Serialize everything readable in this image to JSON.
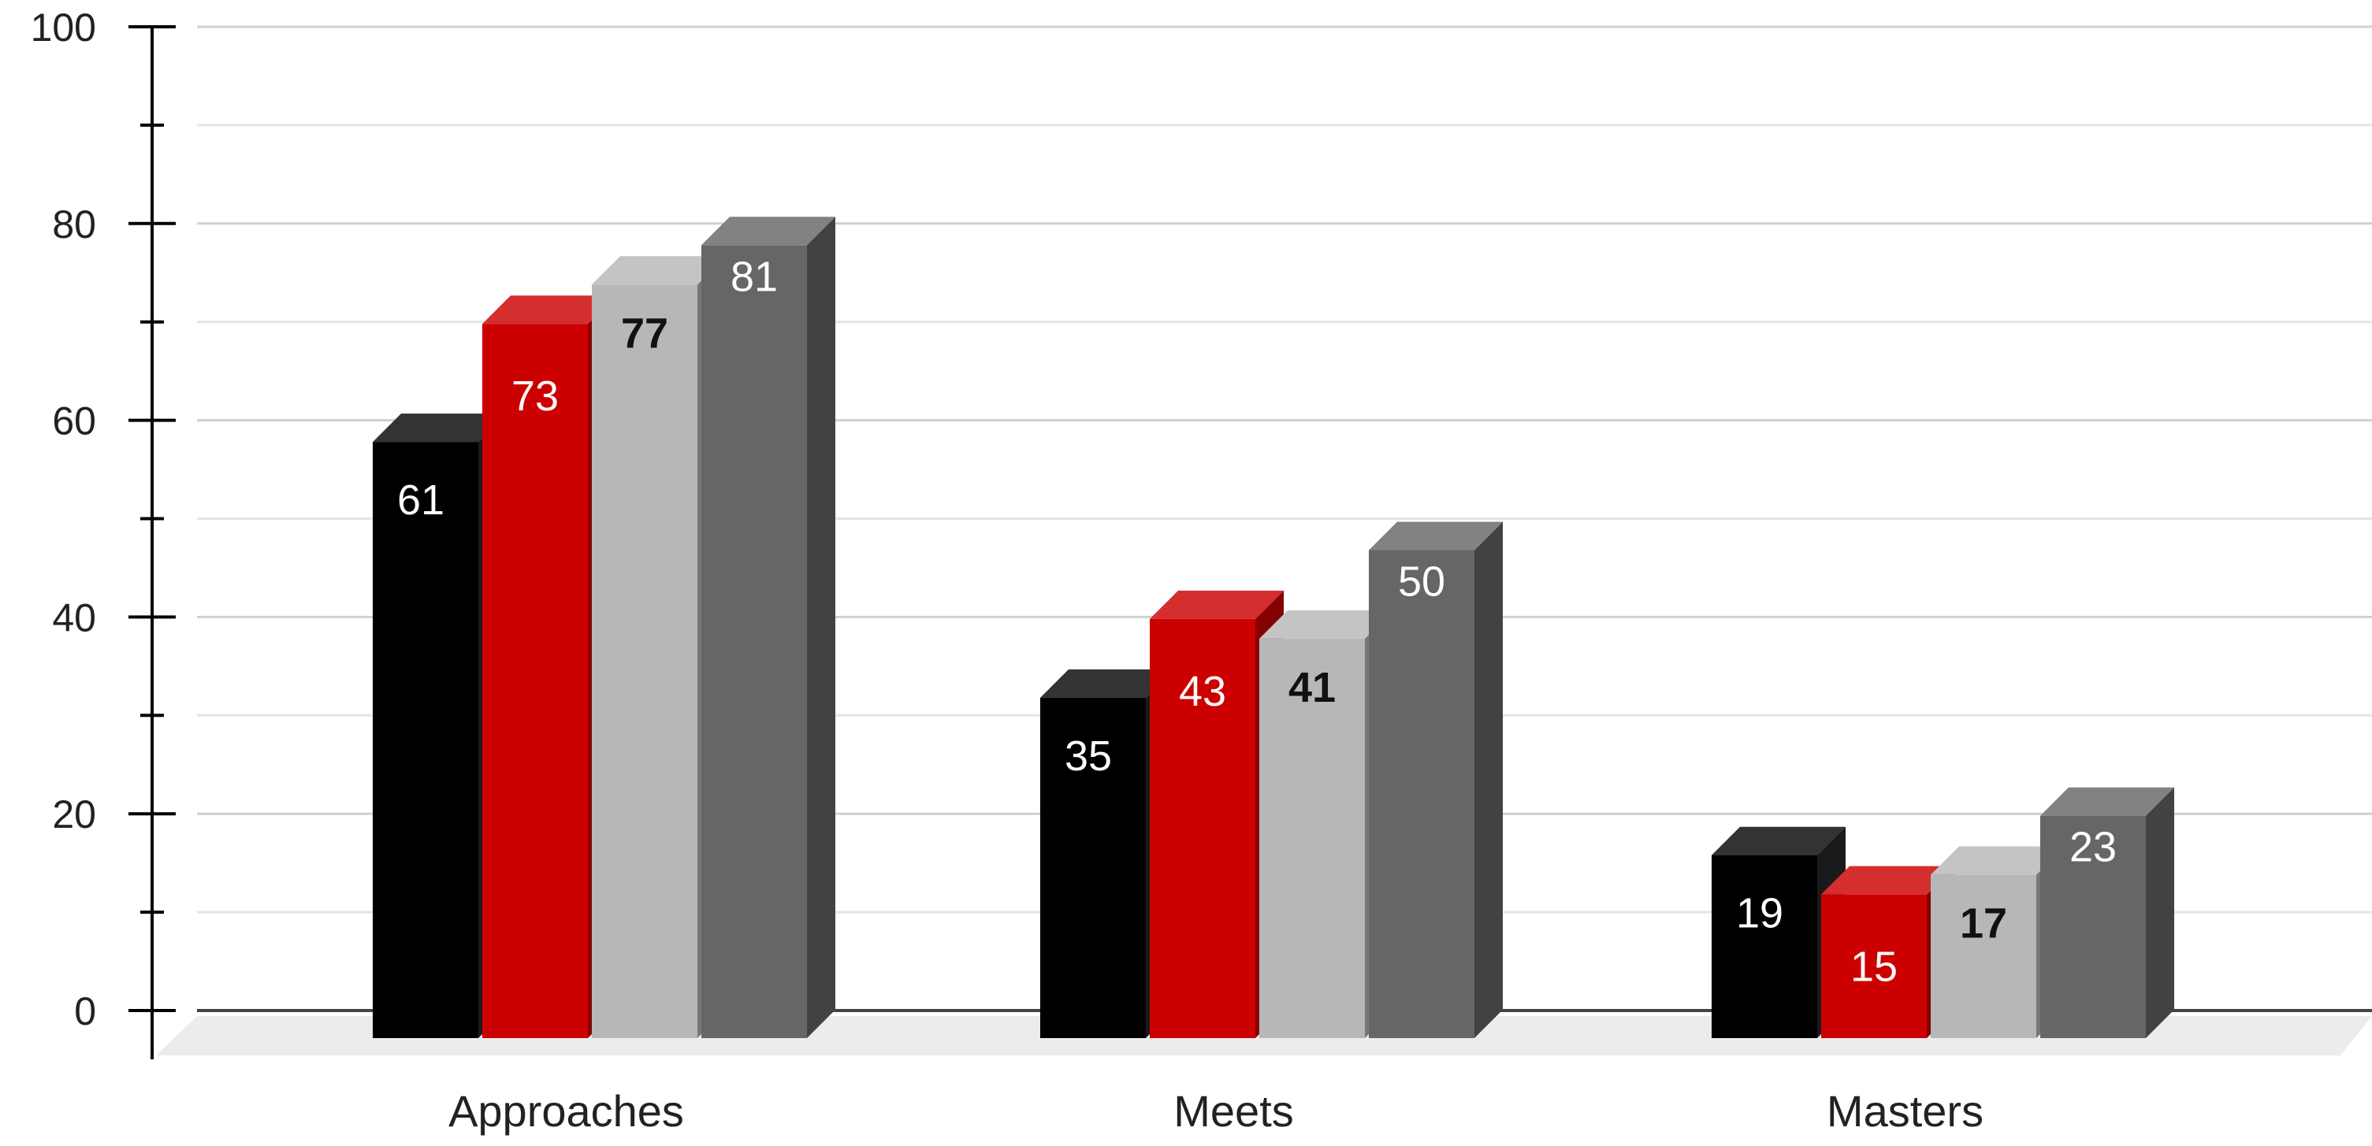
{
  "chart_data": {
    "type": "bar",
    "style": "3d-clustered-column",
    "title": "",
    "xlabel": "",
    "ylabel": "",
    "ylim": [
      0,
      100
    ],
    "y_ticks": [
      0,
      20,
      40,
      60,
      80,
      100
    ],
    "grid": true,
    "legend": "none",
    "categories": [
      "Approaches",
      "Meets",
      "Masters"
    ],
    "series": [
      {
        "values": [
          61,
          35,
          19
        ],
        "color": "#000000"
      },
      {
        "values": [
          73,
          43,
          15
        ],
        "color": "#cc0000"
      },
      {
        "values": [
          77,
          41,
          17
        ],
        "color": "#b7b7b7"
      },
      {
        "values": [
          81,
          50,
          23
        ],
        "color": "#666666"
      }
    ]
  }
}
